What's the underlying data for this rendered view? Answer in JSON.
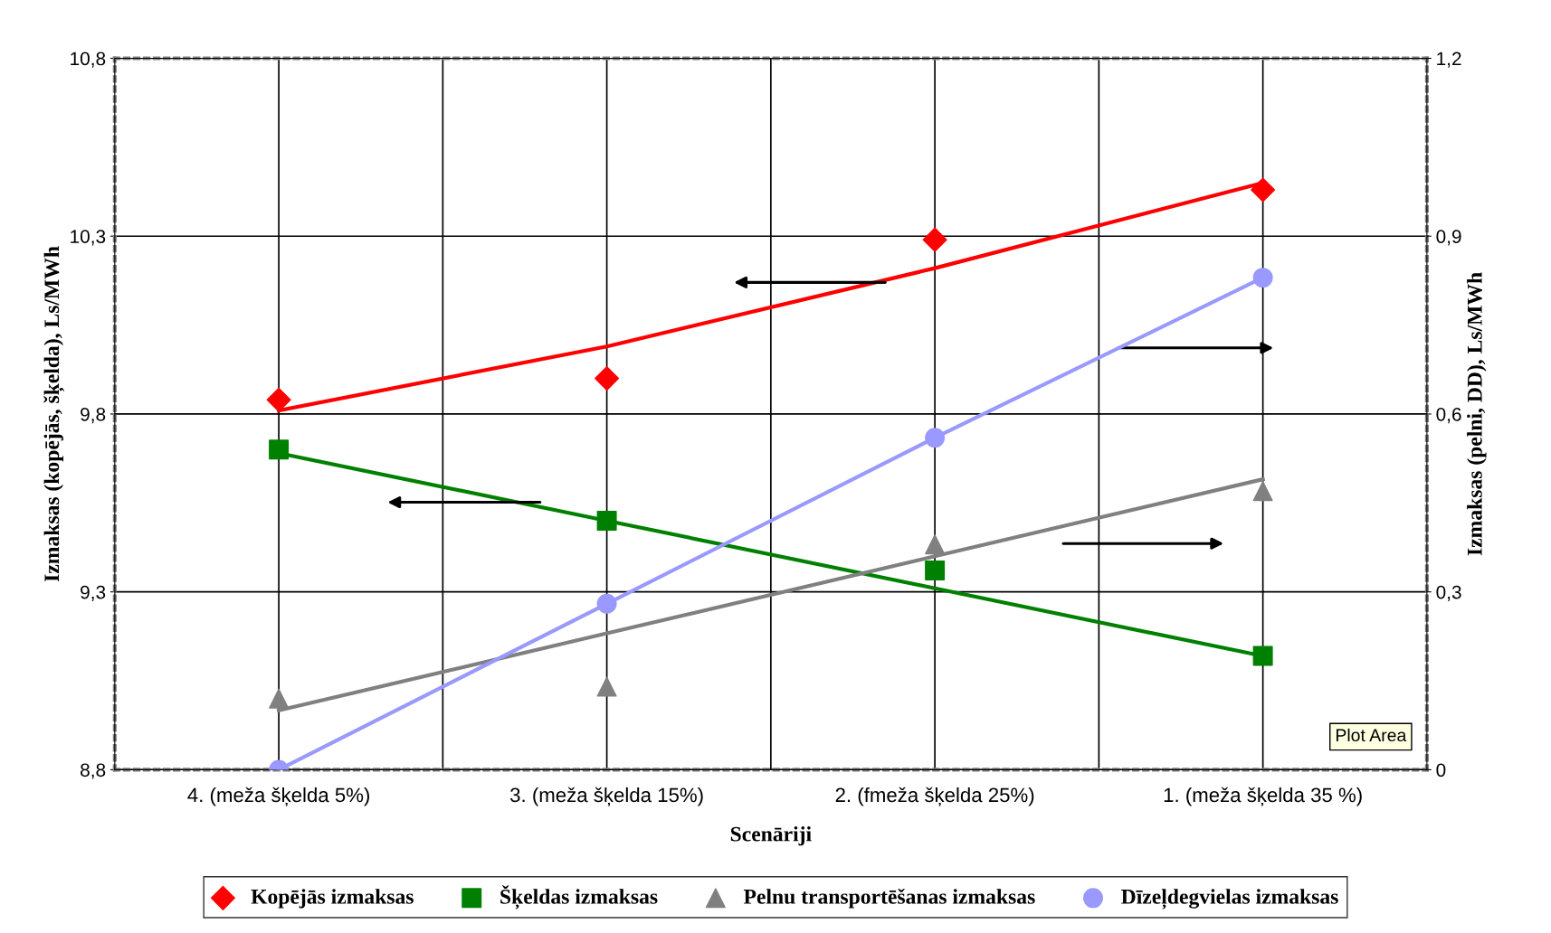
{
  "chart_data": {
    "type": "line",
    "xlabel": "Scenāriji",
    "ylabel": "Izmaksas (kopējās, šķelda), Ls/MWh",
    "y2label": "Izmaksas (pelni, DD), Ls/MWh",
    "categories": [
      "4. (meža šķelda 5%)",
      "3. (meža šķelda 15%)",
      "2. (fmeža šķelda 25%)",
      "1. (meža šķelda 35 %)"
    ],
    "series": [
      {
        "name": "Kopējās izmaksas",
        "type": "scatter",
        "marker": "diamond",
        "color": "#ff0000",
        "values": [
          9.84,
          9.9,
          10.29,
          10.43
        ]
      },
      {
        "name": "Šķeldas izmaksas",
        "type": "scatter",
        "marker": "square",
        "color": "#008000",
        "values": [
          9.7,
          9.5,
          9.36,
          9.12
        ]
      },
      {
        "name": "Pelnu transportēšanas izmaksas",
        "type": "scatter",
        "marker": "triangle",
        "color": "#808080",
        "axis": "y2",
        "values": [
          0.12,
          0.14,
          0.38,
          0.47
        ]
      },
      {
        "name": "Dīzeļdegvielas izmaksas",
        "type": "scatter",
        "marker": "circle",
        "color": "#9999ff",
        "axis": "y2",
        "values": [
          0,
          0.28,
          0.56,
          0.83
        ]
      },
      {
        "color": "#ff0000",
        "values": [
          9.81,
          9.99,
          10.21,
          10.45
        ]
      },
      {
        "color": "#008000",
        "values": [
          9.69,
          9.5,
          9.31,
          9.12
        ]
      },
      {
        "color": "#808080",
        "axis": "y2",
        "values": [
          0.1,
          0.23,
          0.36,
          0.49
        ]
      },
      {
        "color": "#9999ff",
        "axis": "y2",
        "values": [
          0,
          0.28,
          0.56,
          0.83
        ]
      }
    ],
    "ylim": [
      8.8,
      10.8
    ],
    "yticks": [
      {
        "value": 8.8,
        "label": "8,8"
      },
      {
        "value": 9.3,
        "label": "9,3"
      },
      {
        "value": 9.8,
        "label": "9,8"
      },
      {
        "value": 10.3,
        "label": "10,3"
      },
      {
        "value": 10.8,
        "label": "10,8"
      }
    ],
    "y2lim": [
      0,
      1.2
    ],
    "y2ticks": [
      0,
      {
        "value": 0.3,
        "label": "0,3"
      },
      {
        "value": 0.6,
        "label": "0,6"
      },
      {
        "value": 0.9,
        "label": "0,9"
      },
      {
        "value": 1.2,
        "label": "1,2"
      }
    ],
    "grid": true,
    "legend": "bottom",
    "annotations": [
      "Plot Area"
    ]
  }
}
